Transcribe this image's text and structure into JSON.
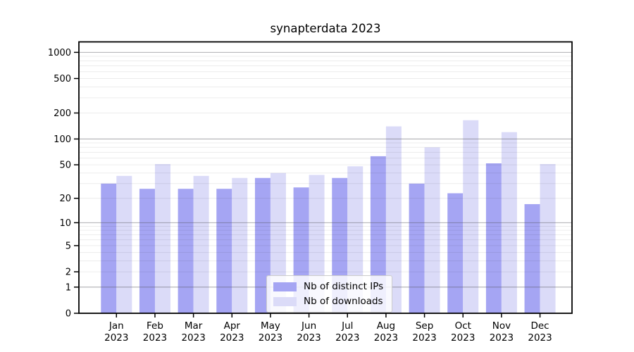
{
  "chart_data": {
    "type": "bar",
    "title": "synapterdata 2023",
    "categories_month": [
      "Jan",
      "Feb",
      "Mar",
      "Apr",
      "May",
      "Jun",
      "Jul",
      "Aug",
      "Sep",
      "Oct",
      "Nov",
      "Dec"
    ],
    "categories_year": "2023",
    "series": [
      {
        "name": "Nb of distinct IPs",
        "color": "#a5a5f3",
        "values": [
          30,
          26,
          26,
          26,
          35,
          27,
          35,
          63,
          30,
          23,
          52,
          17
        ]
      },
      {
        "name": "Nb of downloads",
        "color": "#dbdbf8",
        "values": [
          37,
          51,
          37,
          35,
          40,
          38,
          48,
          140,
          80,
          165,
          120,
          51
        ]
      }
    ],
    "y_ticks": [
      0,
      1,
      2,
      5,
      10,
      20,
      50,
      100,
      200,
      500,
      1000
    ],
    "y_scale": "log10(1+v)",
    "ylim": [
      0,
      1320
    ],
    "grid": true,
    "legend_position": "lower center"
  },
  "colors": {
    "background": "#ffffff",
    "axis": "#000000",
    "major_grid": "#b3b3b3",
    "minor_grid": "#ebebeb"
  }
}
